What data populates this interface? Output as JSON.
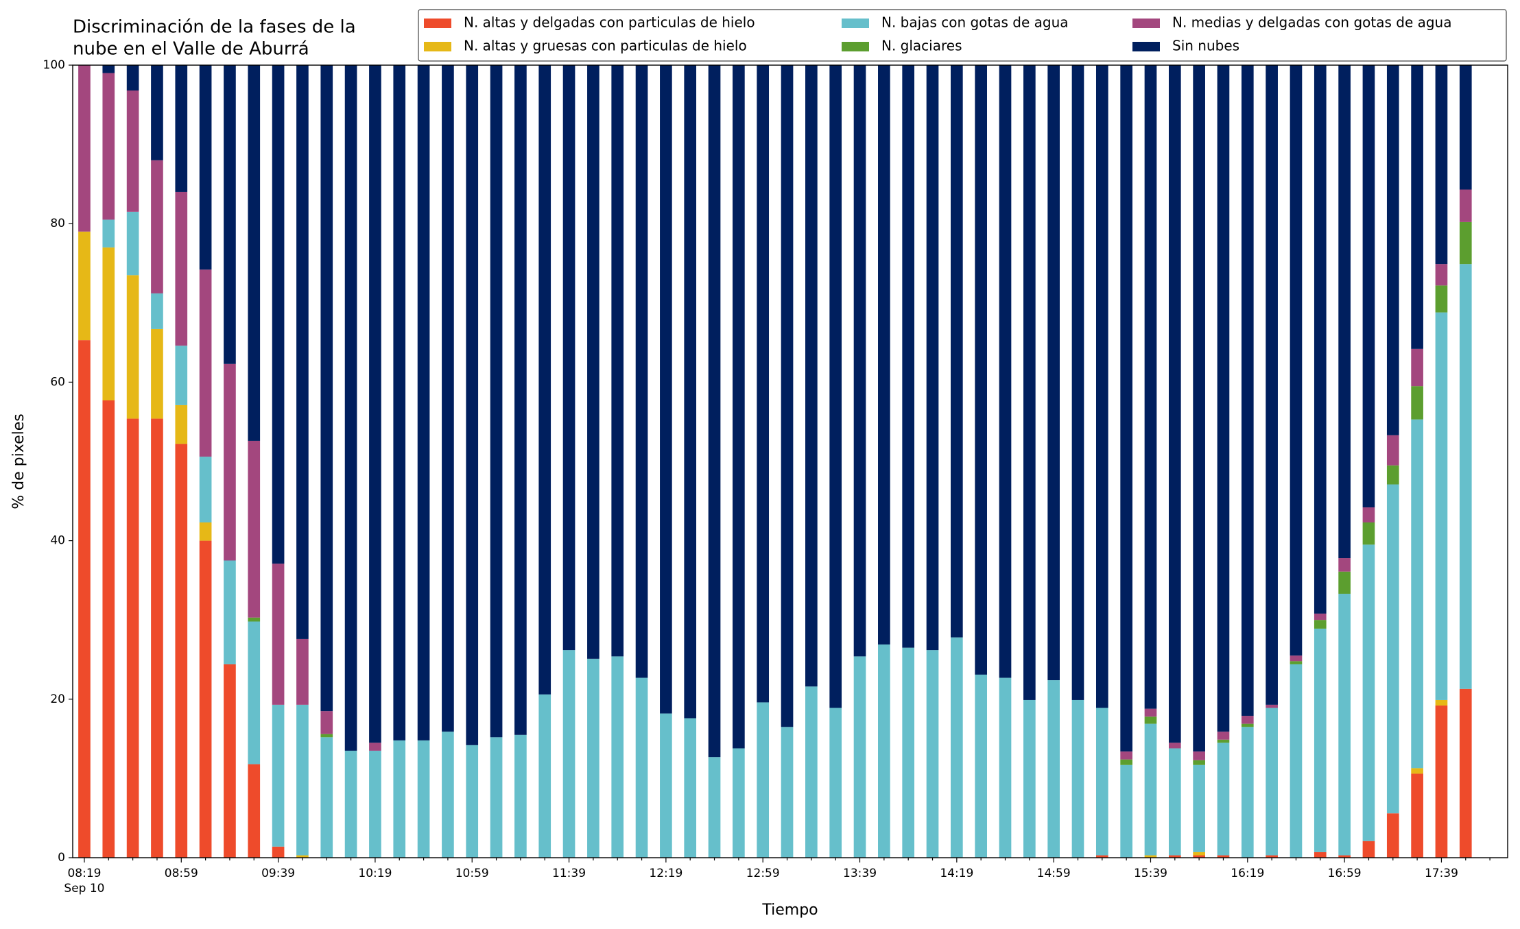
{
  "chart_data": {
    "type": "stacked_bar",
    "title": [
      "Discriminación de la fases de la",
      "nube en el Valle de Aburrá"
    ],
    "x_label": "Tiempo",
    "y_label": "% de pixeles",
    "categories": [
      "08:19",
      null,
      null,
      null,
      "08:59",
      null,
      null,
      null,
      "09:39",
      null,
      null,
      null,
      "10:19",
      null,
      null,
      null,
      "10:59",
      null,
      null,
      null,
      "11:39",
      null,
      null,
      null,
      "12:19",
      null,
      null,
      null,
      "12:59",
      null,
      null,
      null,
      "13:39",
      null,
      null,
      null,
      "14:19",
      null,
      null,
      null,
      "14:59",
      null,
      null,
      null,
      "15:39",
      null,
      null,
      null,
      "16:19",
      null,
      null,
      null,
      "16:59",
      null,
      null,
      null,
      "17:39",
      null
    ],
    "x_date_label": "Sep 10",
    "ylim": [
      0,
      100
    ],
    "yticks": [
      0,
      20,
      40,
      60,
      80,
      100
    ],
    "series": [
      {
        "name": "N. altas y delgadas con particulas de hielo",
        "color": "#ee4b2b",
        "values": [
          65.3,
          57.7,
          55.4,
          55.4,
          52.2,
          40.0,
          24.4,
          11.8,
          1.4,
          0,
          0,
          0,
          0,
          0,
          0,
          0,
          0,
          0,
          0,
          0,
          0,
          0,
          0,
          0,
          0,
          0,
          0,
          0,
          0,
          0,
          0,
          0,
          0,
          0,
          0,
          0,
          0,
          0,
          0,
          0,
          0,
          0,
          0.3,
          0,
          0,
          0.3,
          0.3,
          0.3,
          0,
          0.3,
          0,
          0.7,
          0.3,
          2.1,
          5.6,
          10.6,
          19.2,
          21.3
        ]
      },
      {
        "name": "N. altas y gruesas con particulas de hielo",
        "color": "#e6b817",
        "values": [
          13.7,
          19.3,
          18.1,
          11.3,
          4.9,
          2.3,
          0,
          0,
          0,
          0.3,
          0,
          0,
          0,
          0,
          0,
          0,
          0,
          0,
          0,
          0,
          0,
          0,
          0,
          0,
          0,
          0,
          0,
          0,
          0,
          0,
          0,
          0,
          0,
          0,
          0,
          0,
          0,
          0,
          0,
          0,
          0,
          0,
          0,
          0,
          0.3,
          0,
          0.4,
          0,
          0,
          0,
          0,
          0,
          0,
          0,
          0,
          0.7,
          0.7,
          0
        ]
      },
      {
        "name": "N. bajas con gotas de agua",
        "color": "#66bfcb",
        "values": [
          0,
          3.5,
          8.0,
          4.5,
          7.5,
          8.3,
          13.1,
          18.0,
          17.9,
          19.0,
          15.2,
          13.5,
          13.5,
          14.8,
          14.8,
          15.9,
          14.2,
          15.2,
          15.5,
          20.6,
          26.2,
          25.1,
          25.4,
          22.7,
          18.2,
          17.6,
          12.7,
          13.8,
          19.6,
          16.5,
          21.6,
          18.9,
          25.4,
          26.9,
          26.5,
          26.2,
          27.8,
          23.1,
          22.7,
          19.9,
          22.4,
          19.9,
          18.6,
          11.7,
          16.6,
          13.5,
          11.0,
          14.2,
          16.5,
          18.6,
          24.4,
          28.2,
          33.0,
          37.4,
          41.5,
          44.0,
          48.9,
          53.6
        ]
      },
      {
        "name": "N. glaciares",
        "color": "#5c9e2f",
        "values": [
          0,
          0,
          0,
          0,
          0,
          0,
          0,
          0.5,
          0,
          0,
          0.4,
          0,
          0,
          0,
          0,
          0,
          0,
          0,
          0,
          0,
          0,
          0,
          0,
          0,
          0,
          0,
          0,
          0,
          0,
          0,
          0,
          0,
          0,
          0,
          0,
          0,
          0,
          0,
          0,
          0,
          0,
          0,
          0,
          0.7,
          0.9,
          0,
          0.6,
          0.4,
          0.4,
          0,
          0.4,
          1.1,
          2.8,
          2.8,
          2.4,
          4.2,
          3.4,
          5.3
        ]
      },
      {
        "name": "N. medias y delgadas con gotas de agua",
        "color": "#a3477e",
        "values": [
          21.0,
          18.5,
          15.3,
          16.8,
          19.4,
          23.6,
          24.8,
          22.3,
          17.8,
          8.3,
          2.9,
          0,
          1.0,
          0,
          0,
          0,
          0,
          0,
          0,
          0,
          0,
          0,
          0,
          0,
          0,
          0,
          0,
          0,
          0,
          0,
          0,
          0,
          0,
          0,
          0,
          0,
          0,
          0,
          0,
          0,
          0,
          0,
          0,
          1.0,
          1.0,
          0.7,
          1.1,
          1.0,
          1.0,
          0.4,
          0.7,
          0.8,
          1.7,
          1.9,
          3.8,
          4.7,
          2.7,
          4.1
        ]
      },
      {
        "name": "Sin nubes",
        "color": "#001f5e",
        "values": [
          0,
          1.0,
          3.2,
          12.0,
          16.0,
          25.8,
          37.7,
          47.4,
          62.9,
          72.4,
          81.5,
          86.5,
          85.5,
          85.2,
          85.2,
          84.1,
          85.8,
          84.8,
          84.5,
          79.4,
          73.8,
          74.9,
          74.6,
          77.3,
          81.8,
          82.4,
          87.3,
          86.2,
          80.4,
          83.5,
          78.4,
          81.1,
          74.6,
          73.1,
          73.5,
          73.8,
          72.2,
          76.9,
          77.3,
          80.1,
          77.6,
          80.1,
          81.1,
          86.6,
          81.2,
          85.5,
          86.6,
          84.1,
          82.1,
          80.7,
          74.5,
          69.2,
          62.2,
          55.8,
          46.7,
          35.8,
          25.1,
          15.7
        ]
      }
    ]
  }
}
